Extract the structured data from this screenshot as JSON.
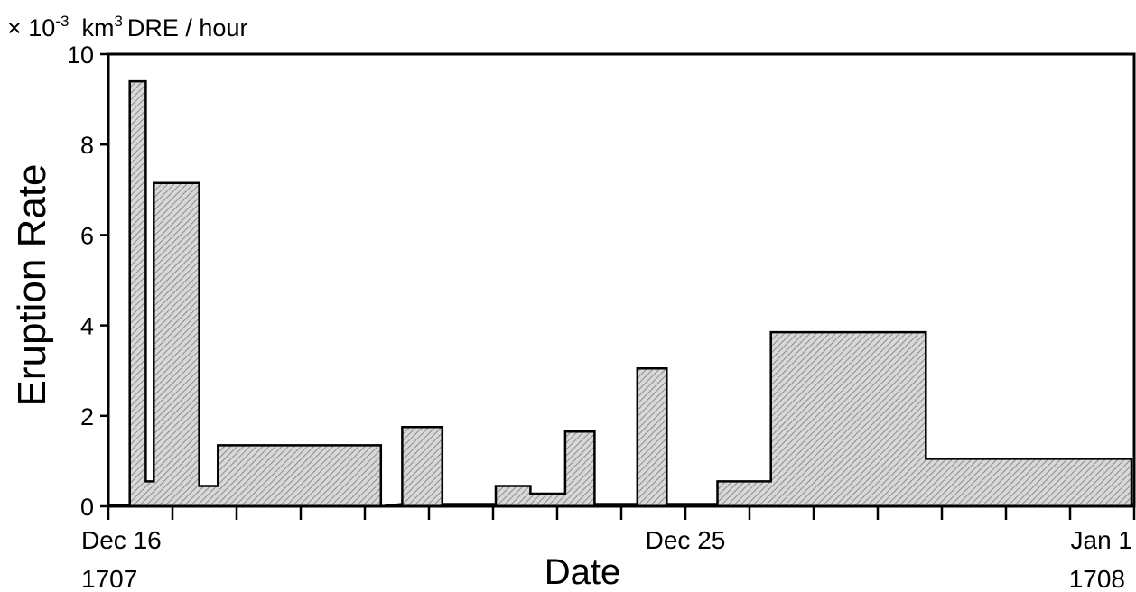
{
  "chart_data": {
    "type": "area",
    "title": "",
    "unit_label": {
      "prefix": "× 10",
      "exponent": "-3",
      "unit": "km",
      "unit_exponent": "3",
      "suffix": "DRE / hour"
    },
    "ylabel": "Eruption Rate",
    "xlabel": "Date",
    "ylim": [
      0,
      10
    ],
    "yticks": [
      0,
      2,
      4,
      6,
      8,
      10
    ],
    "ytick_labels": [
      "0",
      "2",
      "4",
      "6",
      "8",
      "10"
    ],
    "xlim": [
      "1707-12-16",
      "1708-01-01"
    ],
    "x_date_labels": [
      {
        "date": "1707-12-16",
        "label": "Dec 16",
        "year": "1707"
      },
      {
        "date": "1707-12-25",
        "label": "Dec 25",
        "year": ""
      },
      {
        "date": "1708-01-01",
        "label": "Jan 1",
        "year": "1708"
      }
    ],
    "x_tick_dates": [
      "1707-12-16",
      "1707-12-17",
      "1707-12-18",
      "1707-12-19",
      "1707-12-20",
      "1707-12-21",
      "1707-12-22",
      "1707-12-23",
      "1707-12-24",
      "1707-12-25",
      "1707-12-26",
      "1707-12-27",
      "1707-12-28",
      "1707-12-29",
      "1707-12-30",
      "1707-12-31",
      "1708-01-01"
    ],
    "grid": false,
    "fill": "hatched grey",
    "series": [
      {
        "x": [
          "1707-12-16",
          "1707-12-16 08:00",
          "1707-12-16 08:00",
          "1707-12-16 14:00",
          "1707-12-16 14:00",
          "1707-12-16 17:00",
          "1707-12-16 17:00",
          "1707-12-17 10:00",
          "1707-12-17 10:00",
          "1707-12-17 17:00",
          "1707-12-17 17:00",
          "1707-12-20 06:00",
          "1707-12-20 06:00",
          "1707-12-20 14:00",
          "1707-12-20 14:00",
          "1707-12-21 05:00",
          "1707-12-21 05:00",
          "1707-12-22 01:00",
          "1707-12-22 01:00",
          "1707-12-22 14:00",
          "1707-12-22 14:00",
          "1707-12-23 03:00",
          "1707-12-23 03:00",
          "1707-12-23 14:00",
          "1707-12-23 14:00",
          "1707-12-24 06:00",
          "1707-12-24 06:00",
          "1707-12-24 17:00",
          "1707-12-24 17:00",
          "1707-12-25 12:00",
          "1707-12-25 12:00",
          "1707-12-26 08:00",
          "1707-12-26 08:00",
          "1707-12-28 18:00",
          "1707-12-28 18:00",
          "1707-12-31 23:00",
          "1707-12-31 23:00",
          "1708-01-01"
        ],
        "y": [
          0.03,
          0.03,
          9.4,
          9.4,
          0.55,
          0.55,
          7.15,
          7.15,
          0.45,
          0.45,
          1.35,
          1.35,
          0.0,
          0.05,
          1.75,
          1.75,
          0.05,
          0.05,
          0.45,
          0.45,
          0.28,
          0.28,
          1.65,
          1.65,
          0.05,
          0.05,
          3.05,
          3.05,
          0.05,
          0.05,
          0.55,
          0.55,
          3.85,
          3.85,
          1.05,
          1.05,
          0.05,
          0.05
        ]
      }
    ]
  }
}
